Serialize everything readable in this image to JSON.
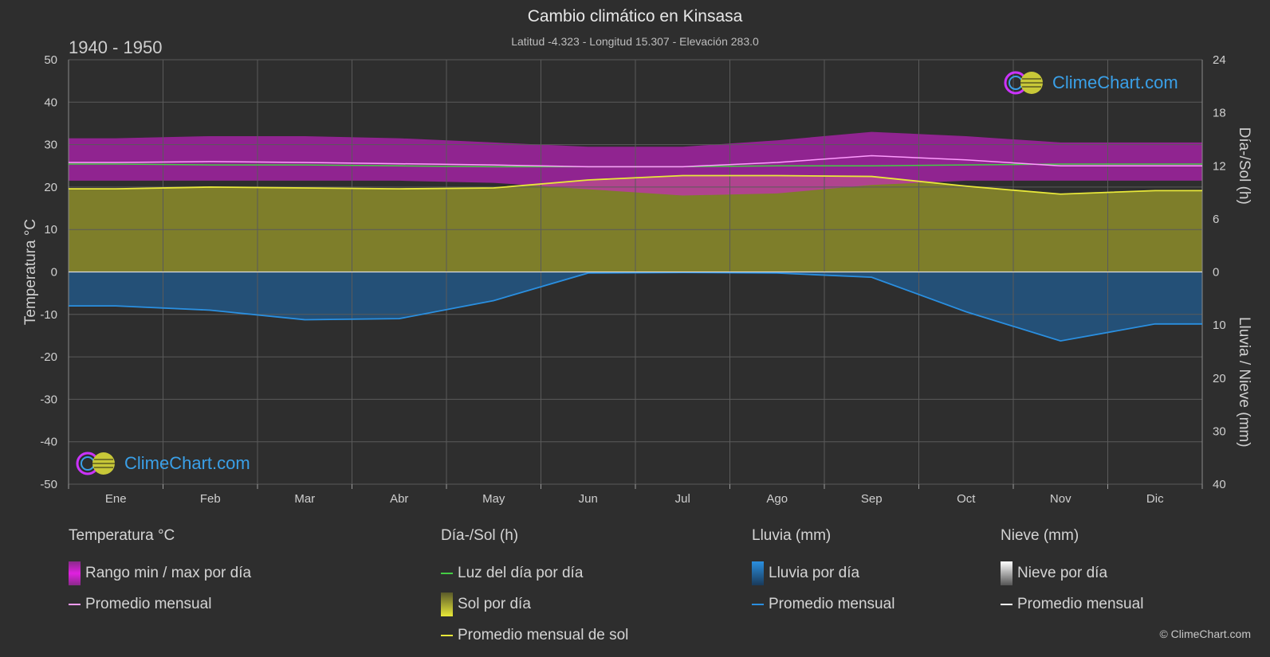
{
  "header": {
    "title": "Cambio climático en Kinsasa",
    "subtitle": "Latitud -4.323 - Longitud 15.307 - Elevación 283.0",
    "period": "1940 - 1950"
  },
  "logo_text": "ClimeChart.com",
  "copyright": "© ClimeChart.com",
  "legend": {
    "temperature": {
      "head": "Temperatura °C",
      "range_label": "Rango min / max por día",
      "avg_label": "Promedio mensual"
    },
    "daylight": {
      "head": "Día-/Sol (h)",
      "daylight_label": "Luz del día por día",
      "sun_label": "Sol por día",
      "sun_avg_label": "Promedio mensual de sol"
    },
    "rain": {
      "head": "Lluvia (mm)",
      "rain_label": "Lluvia por día",
      "avg_label": "Promedio mensual"
    },
    "snow": {
      "head": "Nieve (mm)",
      "snow_label": "Nieve por día",
      "avg_label": "Promedio mensual"
    }
  },
  "colors": {
    "background": "#2e2e2e",
    "temp_range": "#d21ed2",
    "temp_avg": "#ff9cff",
    "daylight": "#44cc44",
    "sun_fill": "#9a9a2a",
    "sun_avg": "#e8e83a",
    "rain": "#1e6eb4",
    "rain_avg": "#2a8fe0",
    "snow": "#e0e0e0"
  },
  "chart_data": {
    "type": "area",
    "months": [
      "Ene",
      "Feb",
      "Mar",
      "Abr",
      "May",
      "Jun",
      "Jul",
      "Ago",
      "Sep",
      "Oct",
      "Nov",
      "Dic"
    ],
    "y_left": {
      "label": "Temperatura °C",
      "range": [
        -50,
        50
      ],
      "ticks": [
        50,
        40,
        30,
        20,
        10,
        0,
        -10,
        -20,
        -30,
        -40,
        -50
      ]
    },
    "y_right_top": {
      "label": "Día-/Sol (h)",
      "range": [
        0,
        24
      ],
      "ticks": [
        24,
        18,
        12,
        6,
        0
      ]
    },
    "y_right_bottom": {
      "label": "Lluvia / Nieve (mm)",
      "range": [
        0,
        40
      ],
      "ticks": [
        0,
        10,
        20,
        30,
        40
      ]
    },
    "series": [
      {
        "name": "Promedio mensual",
        "kind": "temp_avg",
        "unit": "°C",
        "values": [
          25.8,
          26.0,
          25.8,
          25.5,
          25.2,
          24.8,
          24.8,
          25.8,
          27.4,
          26.4,
          25.0,
          25.0
        ]
      },
      {
        "name": "Rango min / max por día",
        "kind": "temp_max",
        "unit": "°C",
        "values": [
          31.5,
          32.0,
          32.0,
          31.5,
          30.5,
          29.5,
          29.5,
          31.0,
          33.0,
          32.0,
          30.5,
          30.5
        ]
      },
      {
        "name": "Rango min / max por día",
        "kind": "temp_min",
        "unit": "°C",
        "values": [
          21.5,
          21.5,
          21.5,
          21.5,
          21.0,
          19.5,
          18.0,
          18.5,
          20.5,
          21.5,
          21.5,
          21.5
        ]
      },
      {
        "name": "Luz del día por día",
        "kind": "daylight",
        "unit": "h",
        "values": [
          12.2,
          12.1,
          12.1,
          12.0,
          11.9,
          11.9,
          11.9,
          12.0,
          12.0,
          12.1,
          12.2,
          12.2
        ]
      },
      {
        "name": "Promedio mensual de sol",
        "kind": "sun_avg",
        "unit": "h",
        "values": [
          9.4,
          9.6,
          9.5,
          9.4,
          9.5,
          10.4,
          10.9,
          10.9,
          10.8,
          9.7,
          8.8,
          9.2
        ]
      },
      {
        "name": "Promedio mensual",
        "kind": "rain_avg",
        "unit": "mm",
        "values": [
          6.4,
          7.2,
          9.0,
          8.8,
          5.4,
          0.2,
          0.1,
          0.2,
          1.0,
          7.5,
          13.0,
          9.8
        ]
      },
      {
        "name": "Promedio mensual",
        "kind": "snow_avg",
        "unit": "mm",
        "values": [
          0,
          0,
          0,
          0,
          0,
          0,
          0,
          0,
          0,
          0,
          0,
          0
        ]
      }
    ]
  }
}
